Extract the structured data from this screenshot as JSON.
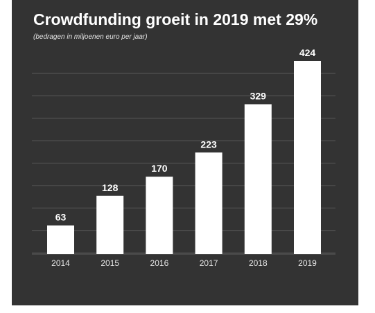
{
  "title": "Crowdfunding groeit in 2019 met 29%",
  "subtitle": "(bedragen in miljoenen euro per jaar)",
  "colors": {
    "background": "#333333",
    "bar": "#ffffff",
    "grid": "#5a5a5a",
    "text": "#ffffff"
  },
  "chart_data": {
    "type": "bar",
    "title": "Crowdfunding groeit in 2019 met 29%",
    "subtitle": "(bedragen in miljoenen euro per jaar)",
    "categories": [
      "2014",
      "2015",
      "2016",
      "2017",
      "2018",
      "2019"
    ],
    "values": [
      63,
      128,
      170,
      223,
      329,
      424
    ],
    "data_labels": [
      "63",
      "128",
      "170",
      "223",
      "329",
      "424"
    ],
    "xlabel": "",
    "ylabel": "",
    "ylim": [
      0,
      424
    ],
    "grid": true,
    "legend": "none"
  }
}
